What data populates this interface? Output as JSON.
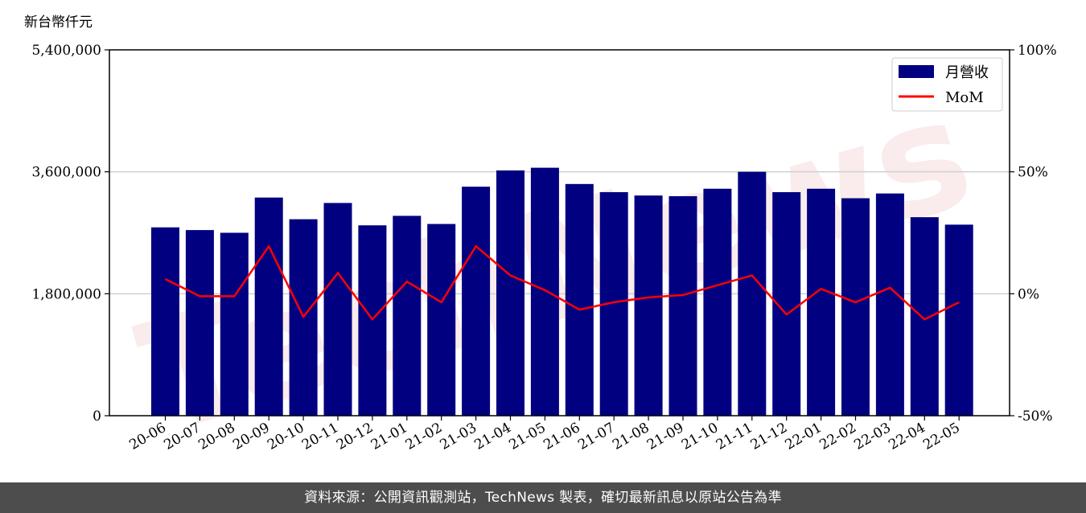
{
  "chart_data": {
    "type": "bar",
    "unit_label": "新台幣仟元",
    "categories": [
      "20-06",
      "20-07",
      "20-08",
      "20-09",
      "20-10",
      "20-11",
      "20-12",
      "21-01",
      "21-02",
      "21-03",
      "21-04",
      "21-05",
      "21-06",
      "21-07",
      "21-08",
      "21-09",
      "21-10",
      "21-11",
      "21-12",
      "22-01",
      "22-02",
      "22-03",
      "22-04",
      "22-05"
    ],
    "series": [
      {
        "name": "月營收",
        "type": "bar",
        "axis": "left",
        "color": "#000080",
        "values": [
          2780000,
          2740000,
          2700000,
          3220000,
          2900000,
          3140000,
          2810000,
          2950000,
          2830000,
          3380000,
          3620000,
          3660000,
          3420000,
          3300000,
          3250000,
          3240000,
          3350000,
          3600000,
          3300000,
          3350000,
          3210000,
          3280000,
          2930000,
          2820000
        ]
      },
      {
        "name": "MoM",
        "type": "line",
        "axis": "right",
        "color": "#ff0000",
        "values": [
          6,
          -1,
          -1,
          19.5,
          -9.5,
          8.5,
          -10.5,
          5,
          -3.5,
          19.5,
          7.5,
          1.5,
          -6.5,
          -3.5,
          -1.5,
          -0.5,
          3.5,
          7.5,
          -8.5,
          2,
          -3.5,
          2.5,
          -10.5,
          -3.5
        ]
      }
    ],
    "y_left": {
      "ylim": [
        0,
        5400000
      ],
      "ticks": [
        0,
        1800000,
        3600000,
        5400000
      ],
      "tick_labels": [
        "0",
        "1,800,000",
        "3,600,000",
        "5,400,000"
      ]
    },
    "y_right": {
      "ylim": [
        -50,
        100
      ],
      "ticks": [
        -50,
        0,
        50,
        100
      ],
      "tick_labels": [
        "-50%",
        "0%",
        "50%",
        "100%"
      ]
    },
    "grid": "horizontal",
    "legend_position": "top-right",
    "watermark": "TechNews"
  },
  "footer": {
    "text": "資料來源：公開資訊觀測站，TechNews 製表，確切最新訊息以原站公告為準"
  }
}
